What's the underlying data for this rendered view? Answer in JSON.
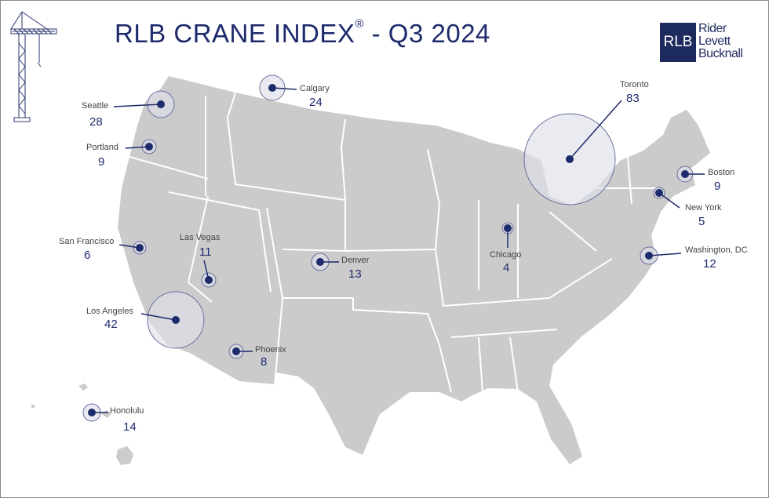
{
  "header": {
    "title_main": "RLB CRANE INDEX",
    "title_mark": "®",
    "title_rest": " - Q3 2024"
  },
  "logo": {
    "abbr": "RLB",
    "lines": [
      "Rider",
      "Levett",
      "Bucknall"
    ]
  },
  "colors": {
    "navy": "#1d2a6b",
    "land": "#cbcbcb",
    "bubble_fill": "#dde1ea",
    "bubble_stroke": "#6b6f9c"
  },
  "cities": [
    {
      "name": "Seattle",
      "count": "28"
    },
    {
      "name": "Calgary",
      "count": "24"
    },
    {
      "name": "Portland",
      "count": "9"
    },
    {
      "name": "San Francisco",
      "count": "6"
    },
    {
      "name": "Las Vegas",
      "count": "11"
    },
    {
      "name": "Los Angeles",
      "count": "42"
    },
    {
      "name": "Denver",
      "count": "13"
    },
    {
      "name": "Phoenix",
      "count": "8"
    },
    {
      "name": "Honolulu",
      "count": "14"
    },
    {
      "name": "Chicago",
      "count": "4"
    },
    {
      "name": "Toronto",
      "count": "83"
    },
    {
      "name": "Boston",
      "count": "9"
    },
    {
      "name": "New York",
      "count": "5"
    },
    {
      "name": "Washington, DC",
      "count": "12"
    }
  ]
}
